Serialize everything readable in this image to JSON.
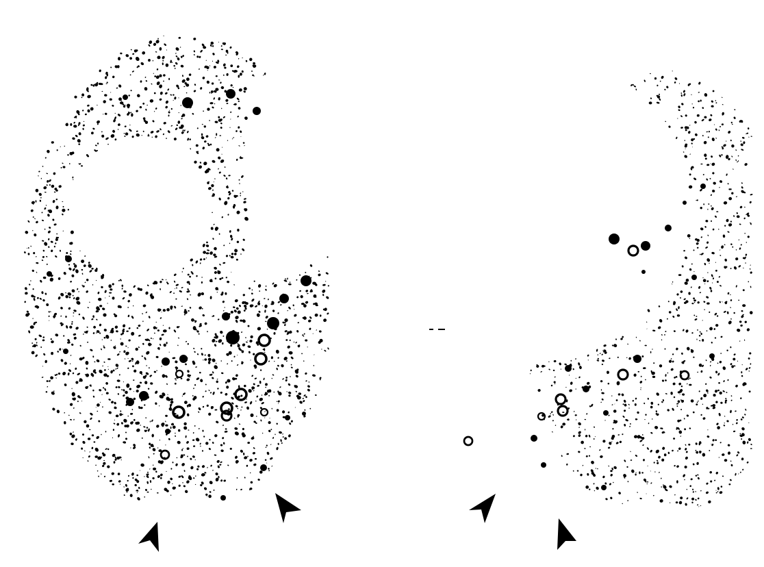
{
  "image": {
    "background_color": "#ffffff",
    "ink_color": "#000000"
  },
  "panels": [
    {
      "id": "left",
      "description_shape": "speckled-disc-with-clear-hole",
      "arrowheads": [
        {
          "direction": "up-right"
        },
        {
          "direction": "up-left"
        }
      ]
    },
    {
      "id": "right",
      "description_shape": "speckled-crescent",
      "arrowheads": [
        {
          "direction": "up-right"
        },
        {
          "direction": "up-left"
        }
      ]
    }
  ]
}
